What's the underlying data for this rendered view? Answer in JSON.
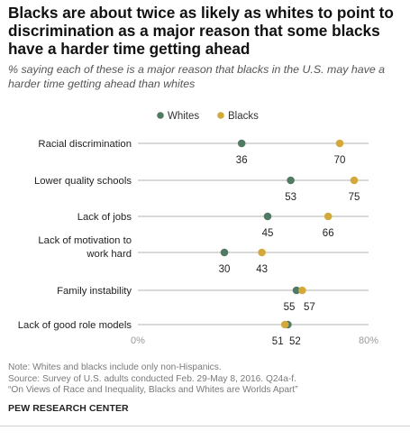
{
  "title": "Blacks are about twice as likely as whites to point to discrimination as a major reason that some blacks have a harder time getting ahead",
  "subtitle": "% saying each of these is a major reason that blacks in the U.S. may have a harder time getting ahead than whites",
  "notes": [
    "Note: Whites and blacks include only non-Hispanics.",
    "Source: Survey of U.S. adults conducted Feb. 29-May 8, 2016. Q24a-f.",
    "“On Views of Race and Inequality, Blacks and Whites are Worlds Apart”"
  ],
  "source_org": "PEW RESEARCH CENTER",
  "chart_data": {
    "type": "scatter",
    "categories": [
      "Racial discrimination",
      "Lower quality schools",
      "Lack of jobs",
      "Lack of motivation to work hard",
      "Family instability",
      "Lack of good role models"
    ],
    "category_lines": [
      [
        "Racial discrimination"
      ],
      [
        "Lower quality schools"
      ],
      [
        "Lack of jobs"
      ],
      [
        "Lack of motivation to",
        "work hard"
      ],
      [
        "Family instability"
      ],
      [
        "Lack of good role models"
      ]
    ],
    "series": [
      {
        "name": "Whites",
        "color": "#4f7a63",
        "values": [
          36,
          53,
          45,
          30,
          55,
          52
        ]
      },
      {
        "name": "Blacks",
        "color": "#d4a93c",
        "values": [
          70,
          75,
          66,
          43,
          57,
          51
        ]
      }
    ],
    "xlim": [
      0,
      80
    ],
    "x_tick_labels": [
      "0%",
      "80%"
    ],
    "legend_position": "top",
    "grid": false
  }
}
